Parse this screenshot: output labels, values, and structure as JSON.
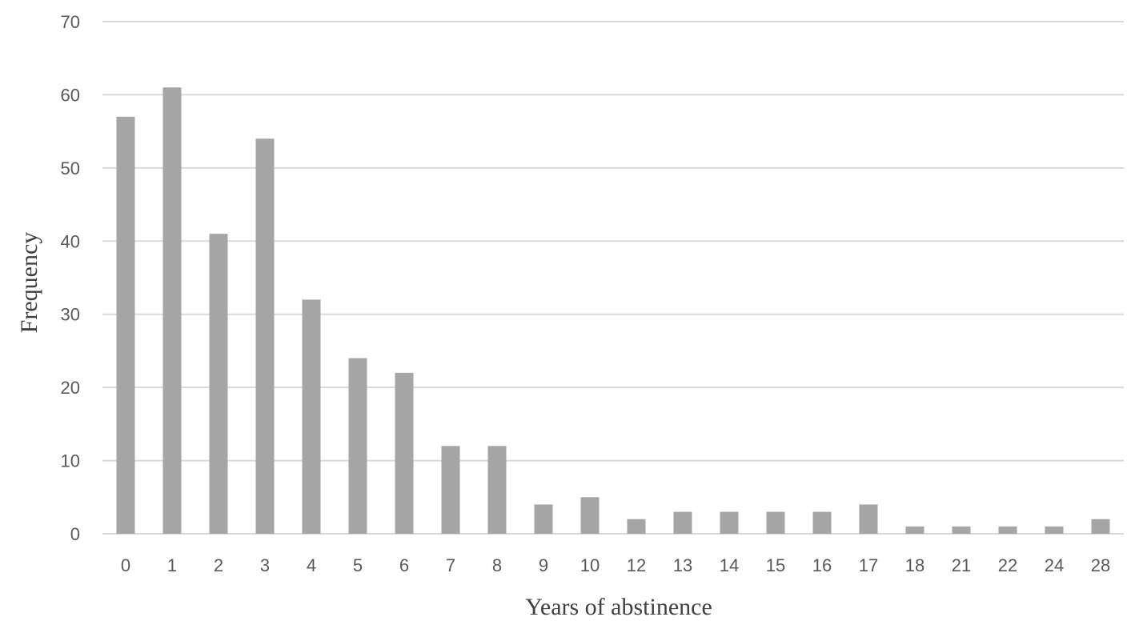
{
  "chart_data": {
    "type": "bar",
    "title": "",
    "xlabel": "Years of abstinence",
    "ylabel": "Frequency",
    "categories": [
      "0",
      "1",
      "2",
      "3",
      "4",
      "5",
      "6",
      "7",
      "8",
      "9",
      "10",
      "12",
      "13",
      "14",
      "15",
      "16",
      "17",
      "18",
      "21",
      "22",
      "24",
      "28"
    ],
    "values": [
      57,
      61,
      41,
      54,
      32,
      24,
      22,
      12,
      12,
      4,
      5,
      2,
      3,
      3,
      3,
      3,
      4,
      1,
      1,
      1,
      1,
      2
    ],
    "ylim": [
      0,
      70
    ],
    "yticks": [
      0,
      10,
      20,
      30,
      40,
      50,
      60,
      70
    ],
    "grid": true,
    "legend": "none",
    "bar_color": "#a5a5a5",
    "grid_color": "#d9d9d9"
  }
}
